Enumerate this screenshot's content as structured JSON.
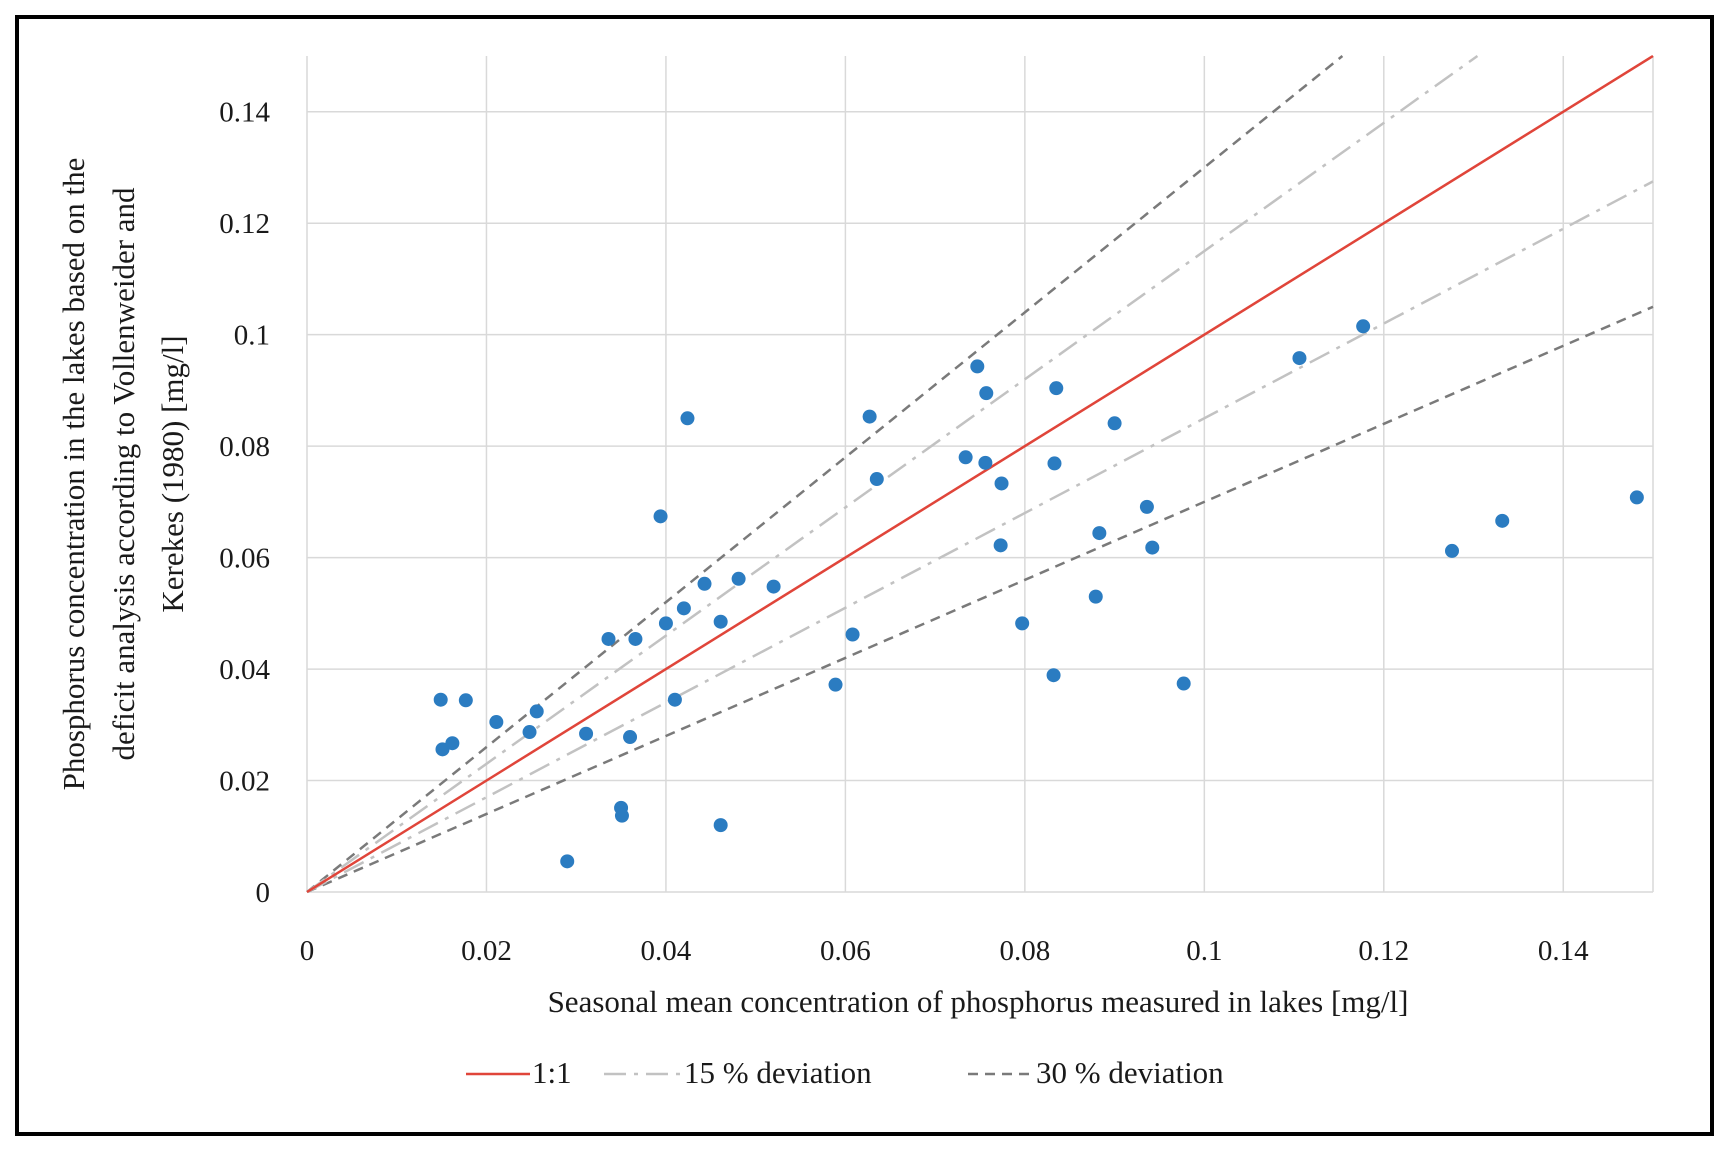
{
  "chart_data": {
    "type": "scatter",
    "title": "",
    "xlabel": "Seasonal mean concentration of phosphorus measured in lakes [mg/l]",
    "ylabel_lines": [
      "Phosphorus concentration in the lakes based on the",
      "deficit analysis according to Vollenweider and",
      "Kerekes (1980) [mg/l]"
    ],
    "xlim": [
      0,
      0.15
    ],
    "ylim": [
      0,
      0.15
    ],
    "grid": true,
    "x_ticks": [
      0,
      0.02,
      0.04,
      0.06,
      0.08,
      0.1,
      0.12,
      0.14
    ],
    "x_tick_labels": [
      "0",
      "0.02",
      "0.04",
      "0.06",
      "0.08",
      "0.1",
      "0.12",
      "0.14"
    ],
    "y_ticks": [
      0,
      0.02,
      0.04,
      0.06,
      0.08,
      0.1,
      0.12,
      0.14
    ],
    "y_tick_labels": [
      "0",
      "0.02",
      "0.04",
      "0.06",
      "0.08",
      "0.1",
      "0.12",
      "0.14"
    ],
    "points_color": "#2b7cc1",
    "points": [
      {
        "x": 0.0149,
        "y": 0.0345
      },
      {
        "x": 0.0151,
        "y": 0.0256
      },
      {
        "x": 0.0162,
        "y": 0.0267
      },
      {
        "x": 0.0177,
        "y": 0.0344
      },
      {
        "x": 0.0211,
        "y": 0.0305
      },
      {
        "x": 0.0248,
        "y": 0.0287
      },
      {
        "x": 0.0256,
        "y": 0.0324
      },
      {
        "x": 0.029,
        "y": 0.0055
      },
      {
        "x": 0.0311,
        "y": 0.0284
      },
      {
        "x": 0.0336,
        "y": 0.0454
      },
      {
        "x": 0.035,
        "y": 0.0151
      },
      {
        "x": 0.0351,
        "y": 0.0137
      },
      {
        "x": 0.036,
        "y": 0.0278
      },
      {
        "x": 0.0366,
        "y": 0.0454
      },
      {
        "x": 0.0394,
        "y": 0.0674
      },
      {
        "x": 0.04,
        "y": 0.0482
      },
      {
        "x": 0.041,
        "y": 0.0345
      },
      {
        "x": 0.042,
        "y": 0.0509
      },
      {
        "x": 0.0424,
        "y": 0.085
      },
      {
        "x": 0.0443,
        "y": 0.0553
      },
      {
        "x": 0.0461,
        "y": 0.0485
      },
      {
        "x": 0.0461,
        "y": 0.012
      },
      {
        "x": 0.0481,
        "y": 0.0562
      },
      {
        "x": 0.052,
        "y": 0.0548
      },
      {
        "x": 0.0589,
        "y": 0.0372
      },
      {
        "x": 0.0608,
        "y": 0.0462
      },
      {
        "x": 0.0627,
        "y": 0.0853
      },
      {
        "x": 0.0635,
        "y": 0.0741
      },
      {
        "x": 0.0734,
        "y": 0.078
      },
      {
        "x": 0.0747,
        "y": 0.0943
      },
      {
        "x": 0.0756,
        "y": 0.077
      },
      {
        "x": 0.0757,
        "y": 0.0895
      },
      {
        "x": 0.0774,
        "y": 0.0733
      },
      {
        "x": 0.0773,
        "y": 0.0622
      },
      {
        "x": 0.0797,
        "y": 0.0482
      },
      {
        "x": 0.0832,
        "y": 0.0389
      },
      {
        "x": 0.0833,
        "y": 0.0769
      },
      {
        "x": 0.0835,
        "y": 0.0904
      },
      {
        "x": 0.0879,
        "y": 0.053
      },
      {
        "x": 0.0883,
        "y": 0.0644
      },
      {
        "x": 0.09,
        "y": 0.0841
      },
      {
        "x": 0.0936,
        "y": 0.0691
      },
      {
        "x": 0.0942,
        "y": 0.0618
      },
      {
        "x": 0.0977,
        "y": 0.0374
      },
      {
        "x": 0.1106,
        "y": 0.0958
      },
      {
        "x": 0.1177,
        "y": 0.1015
      },
      {
        "x": 0.1276,
        "y": 0.0612
      },
      {
        "x": 0.1332,
        "y": 0.0666
      },
      {
        "x": 0.1482,
        "y": 0.0708
      }
    ],
    "series": [
      {
        "name": "1:1",
        "slope": 1.0,
        "color": "#e0453a",
        "dash": "solid"
      },
      {
        "name": "15 % deviation",
        "slopes": [
          1.15,
          0.85
        ],
        "color": "#c2c2c2",
        "dash": "dashdot"
      },
      {
        "name": "30 % deviation",
        "slopes": [
          1.3,
          0.7
        ],
        "color": "#7a7a7a",
        "dash": "dashed"
      }
    ],
    "legend_position": "bottom"
  }
}
